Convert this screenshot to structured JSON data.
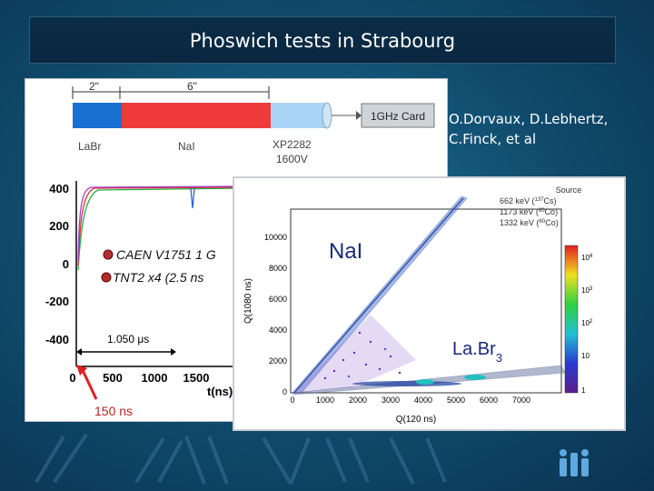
{
  "slide": {
    "title": "Phoswich tests in Strabourg",
    "authors_line1": "O.Dorvaux, D.Lebhertz,",
    "authors_line2": "C.Finck, et al"
  },
  "detector": {
    "dim_labr": "2\"",
    "dim_nai": "6\"",
    "card_label": "1GHz Card",
    "labels": {
      "labr": "LaBr",
      "nai": "NaI",
      "pmt": "XP2282",
      "voltage": "1600V"
    },
    "colors": {
      "labr": "#1a6fd1",
      "nai": "#ee3a3a",
      "pmt": "#a9d4f5"
    }
  },
  "waveform": {
    "y_ticks": [
      "400",
      "200",
      "0",
      "-200",
      "-400"
    ],
    "x_ticks": [
      "0",
      "500",
      "1000",
      "1500"
    ],
    "xlabel": "t(ns)",
    "time_window": "1.050 μs",
    "marker_label": "150 ns",
    "bullet1": "CAEN V1751 1 G",
    "bullet2": "TNT2 x4 (2.5 ns"
  },
  "scatter": {
    "y_ticks": [
      "10000",
      "8000",
      "6000",
      "4000",
      "2000",
      "0"
    ],
    "x_ticks": [
      "0",
      "1000",
      "2000",
      "3000",
      "4000",
      "5000",
      "6000",
      "7000"
    ],
    "ylabel": "Q(1080 ns)",
    "xlabel": "Q(120 ns)",
    "legend_title": "Source",
    "legend": [
      {
        "energy": "662 keV",
        "iso_mass": "137",
        "iso": "Cs"
      },
      {
        "energy": "1173 keV",
        "iso_mass": "60",
        "iso": "Co"
      },
      {
        "energy": "1332 keV",
        "iso_mass": "60",
        "iso": "Co"
      }
    ],
    "colorbar_ticks": [
      {
        "base": "10",
        "exp": "4"
      },
      {
        "base": "10",
        "exp": "3"
      },
      {
        "base": "10",
        "exp": "2"
      },
      {
        "base": "10",
        "exp": ""
      },
      {
        "base": "1",
        "exp": ""
      }
    ],
    "label_nai": "NaI",
    "label_labr_main": "La.Br",
    "label_labr_sub": "3"
  }
}
